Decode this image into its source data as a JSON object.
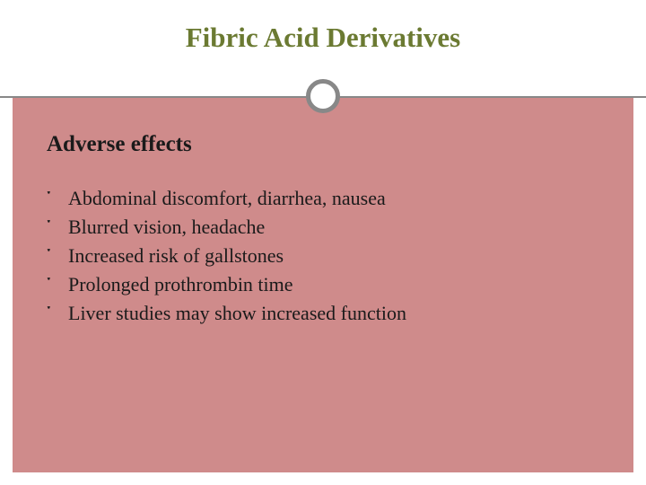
{
  "slide": {
    "title": "Fibric Acid Derivatives",
    "title_color": "#6b7a32",
    "title_fontsize": 31,
    "background_color": "#ffffff",
    "body_background": "#cf8b8b",
    "divider_color": "#888888",
    "circle_border_width": 5,
    "subheading": "Adverse effects",
    "subheading_fontsize": 25,
    "bullet_mark": "་",
    "bullet_fontsize": 22,
    "text_color": "#1a1a1a",
    "bullets": [
      "Abdominal discomfort, diarrhea, nausea",
      "Blurred vision, headache",
      "Increased risk of gallstones",
      "Prolonged prothrombin time",
      "Liver studies may show increased function"
    ]
  }
}
